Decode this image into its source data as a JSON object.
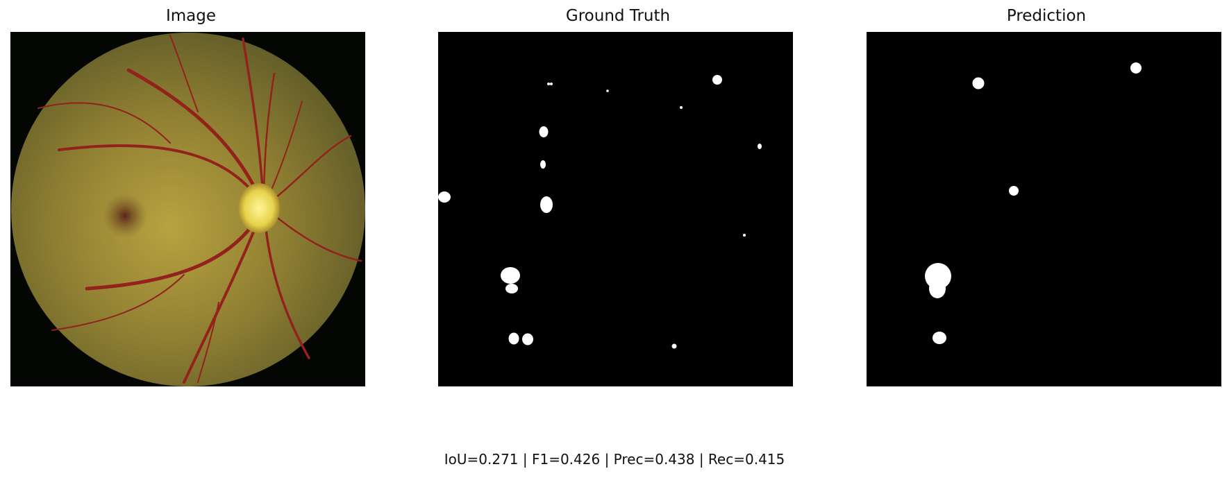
{
  "panels": {
    "image_title": "Image",
    "ground_truth_title": "Ground Truth",
    "prediction_title": "Prediction"
  },
  "metrics_text": "IoU=0.271 | F1=0.426 | Prec=0.438 | Rec=0.415",
  "colors": {
    "fundus_outer": "#b59a3a",
    "fundus_inner": "#8b6a2a",
    "vessel": "#9a1f1f",
    "optic_disc": "#f0e070",
    "mask_bg": "#000000",
    "mask_fg": "#ffffff"
  }
}
